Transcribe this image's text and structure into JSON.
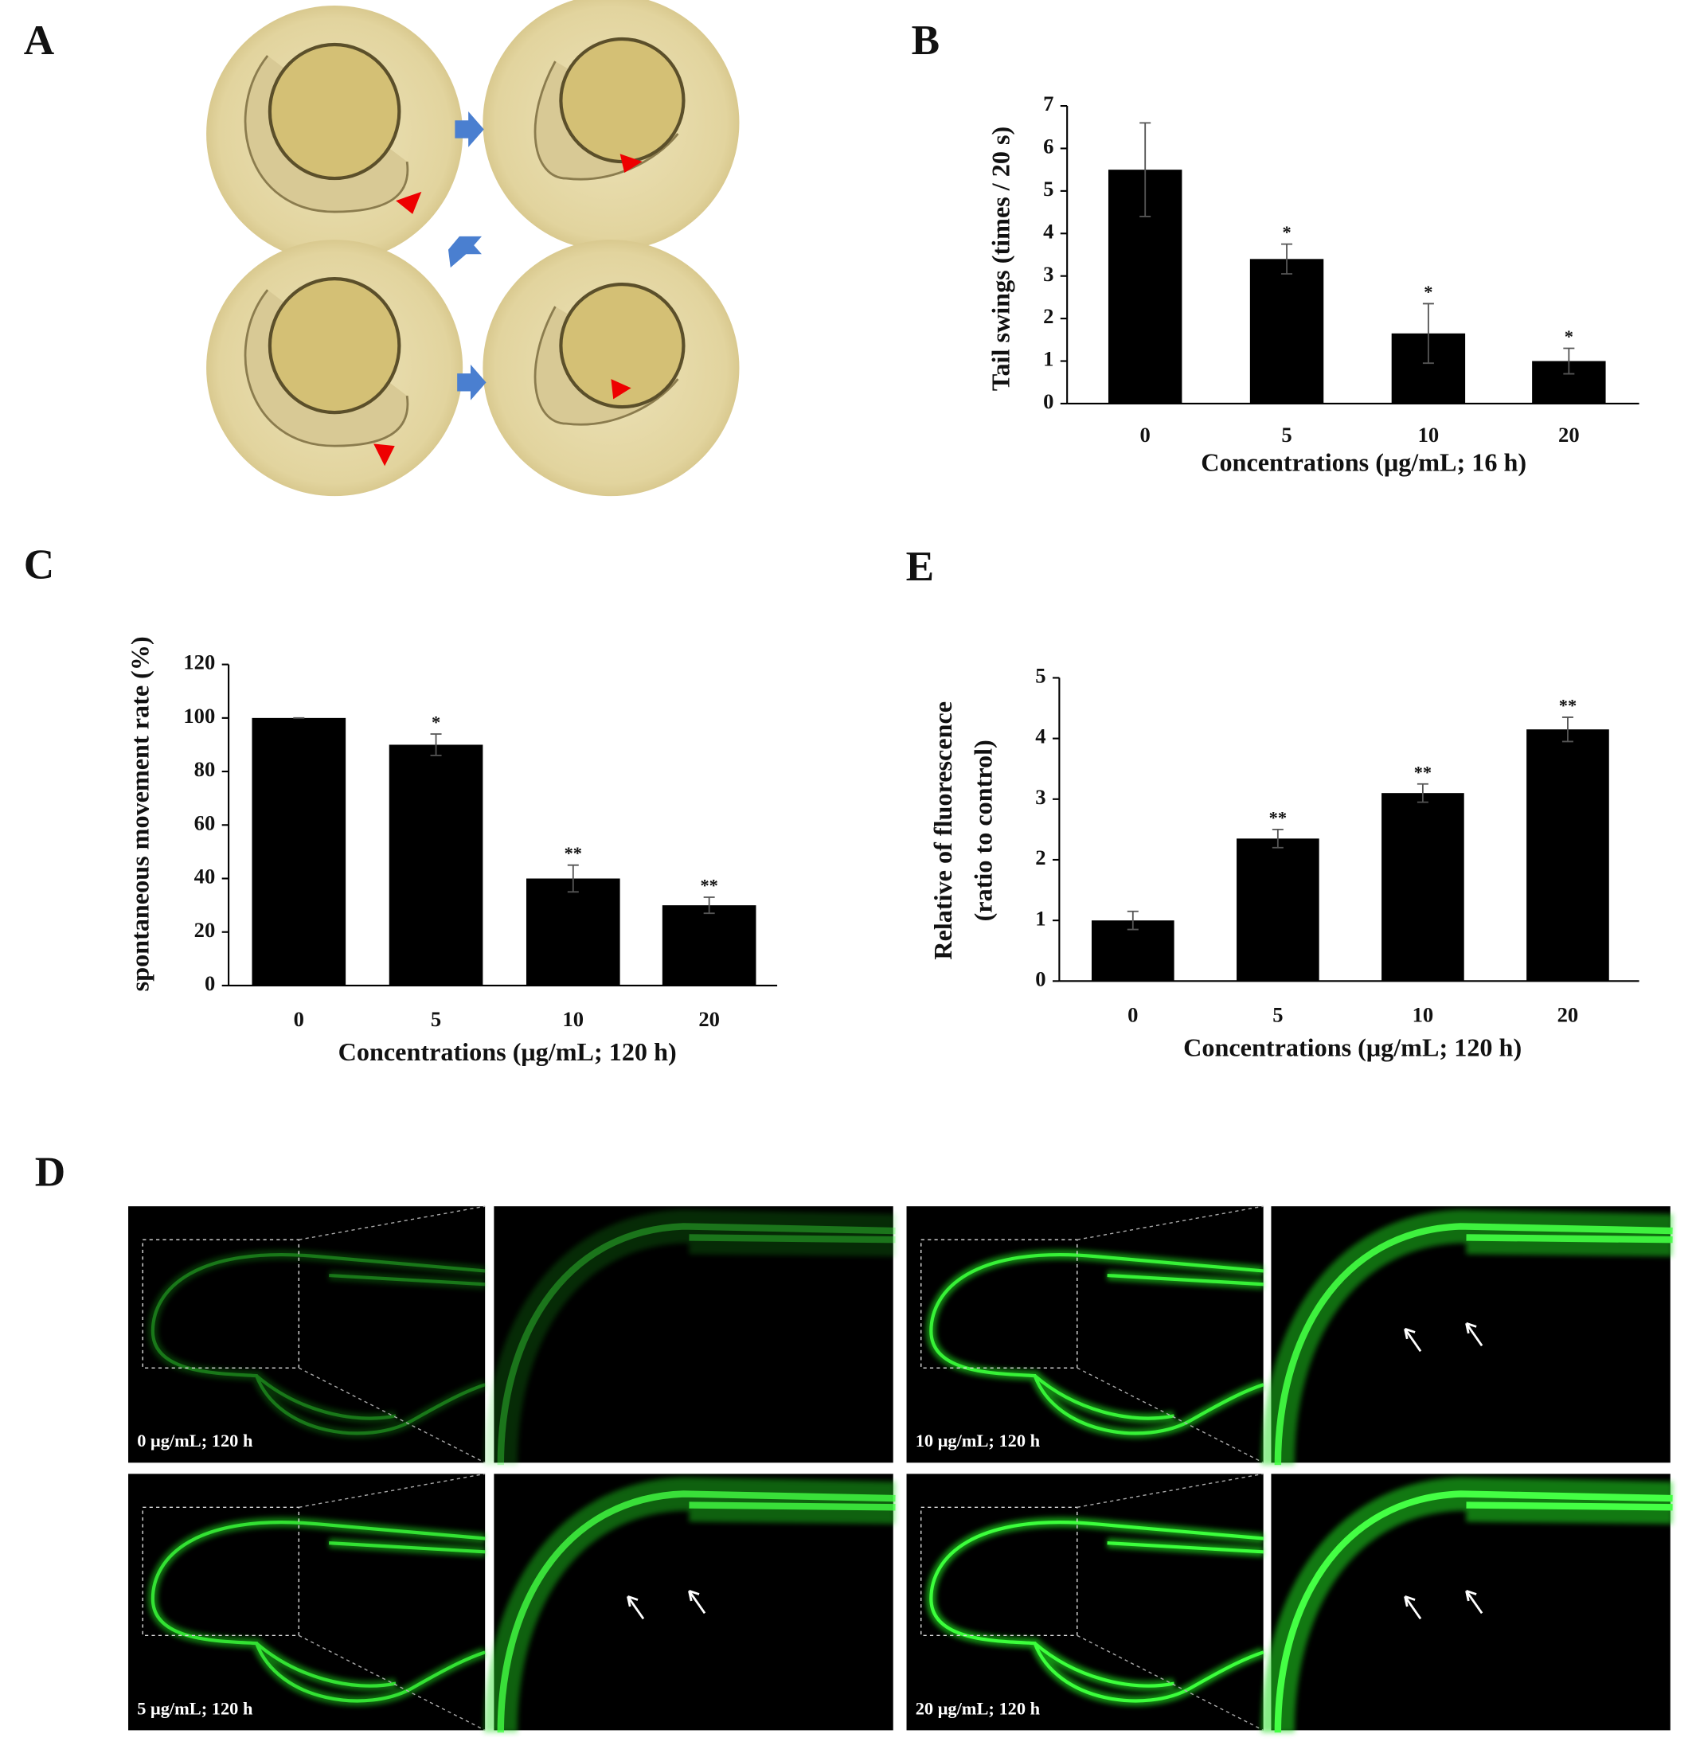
{
  "panel_labels": {
    "a": "A",
    "d": "D"
  },
  "micrograph_captions": [
    "0 μg/mL; 120 h",
    "5 μg/mL; 120 h",
    "10 μg/mL; 120 h",
    "20 μg/mL; 120 h"
  ],
  "chart_data": [
    {
      "type": "bar",
      "panel_label": "B",
      "ylabel": [
        "Tail swings (times / 20 s)"
      ],
      "xlabel": "Concentrations (μg/mL; 16 h)",
      "categories": [
        "0",
        "5",
        "10",
        "20"
      ],
      "values": [
        5.5,
        3.4,
        1.65,
        1.0
      ],
      "errors": [
        1.1,
        0.35,
        0.7,
        0.3
      ],
      "significance": [
        null,
        "*",
        "*",
        "*"
      ],
      "color": "#000000",
      "ylim": [
        0,
        7
      ],
      "yticks": [
        0,
        1,
        2,
        3,
        4,
        5,
        6,
        7
      ]
    },
    {
      "type": "bar",
      "panel_label": "C",
      "ylabel": [
        "spontaneous movement rate (%)"
      ],
      "xlabel": "Concentrations (μg/mL; 120 h)",
      "categories": [
        "0",
        "5",
        "10",
        "20"
      ],
      "values": [
        100,
        90,
        40,
        30
      ],
      "errors": [
        0,
        4,
        5,
        3
      ],
      "significance": [
        null,
        "*",
        "**",
        "**"
      ],
      "color": "#000000",
      "ylim": [
        0,
        120
      ],
      "yticks": [
        0,
        20,
        40,
        60,
        80,
        100,
        120
      ]
    },
    {
      "type": "bar",
      "panel_label": "E",
      "ylabel": [
        "Relative of fluorescence",
        "(ratio to control)"
      ],
      "xlabel": "Concentrations (μg/mL; 120 h)",
      "categories": [
        "0",
        "5",
        "10",
        "20"
      ],
      "values": [
        1.0,
        2.35,
        3.1,
        4.15
      ],
      "errors": [
        0.15,
        0.15,
        0.15,
        0.2
      ],
      "significance": [
        null,
        "**",
        "**",
        "**"
      ],
      "color": "#000000",
      "ylim": [
        0,
        5
      ],
      "yticks": [
        0,
        1,
        2,
        3,
        4,
        5
      ]
    }
  ]
}
